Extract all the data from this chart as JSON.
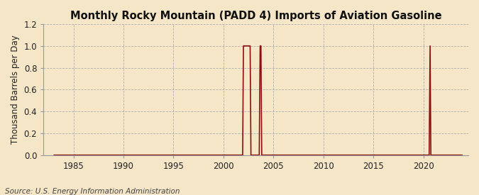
{
  "title": "Monthly Rocky Mountain (PADD 4) Imports of Aviation Gasoline",
  "ylabel": "Thousand Barrels per Day",
  "source": "Source: U.S. Energy Information Administration",
  "background_color": "#f5e6c8",
  "plot_bg_color": "#f5e6c8",
  "line_color": "#8b1010",
  "grid_color": "#b0b0b0",
  "ylim": [
    0.0,
    1.2
  ],
  "yticks": [
    0.0,
    0.2,
    0.4,
    0.6,
    0.8,
    1.0,
    1.2
  ],
  "xlim_start": 1982.0,
  "xlim_end": 2024.5,
  "xticks": [
    1985,
    1990,
    1995,
    2000,
    2005,
    2010,
    2015,
    2020
  ],
  "title_fontsize": 10.5,
  "axis_fontsize": 8.5,
  "tick_fontsize": 8.5,
  "source_fontsize": 7.5,
  "data_points": [
    [
      1983.0,
      0.0
    ],
    [
      1983.08,
      0.0
    ],
    [
      1983.17,
      0.0
    ],
    [
      1983.25,
      0.0
    ],
    [
      1983.33,
      0.0
    ],
    [
      1983.42,
      0.0
    ],
    [
      1983.5,
      0.0
    ],
    [
      1983.58,
      0.0
    ],
    [
      1983.67,
      0.0
    ],
    [
      1983.75,
      0.0
    ],
    [
      1983.83,
      0.0
    ],
    [
      1983.92,
      0.0
    ],
    [
      1984.0,
      0.0
    ],
    [
      1991.0,
      0.0
    ],
    [
      1991.08,
      0.0
    ],
    [
      1991.17,
      0.0
    ],
    [
      1991.25,
      0.0
    ],
    [
      1991.33,
      0.0
    ],
    [
      1991.42,
      0.0
    ],
    [
      1991.5,
      0.0
    ],
    [
      1991.58,
      0.0
    ],
    [
      1991.67,
      0.0
    ],
    [
      1991.75,
      0.0
    ],
    [
      1991.83,
      0.0
    ],
    [
      1991.92,
      0.0
    ],
    [
      1992.0,
      0.0
    ],
    [
      1992.08,
      0.0
    ],
    [
      1992.17,
      0.0
    ],
    [
      1992.25,
      0.0
    ],
    [
      1992.33,
      0.0
    ],
    [
      1992.42,
      0.0
    ],
    [
      1992.5,
      0.0
    ],
    [
      1992.58,
      0.0
    ],
    [
      1992.67,
      0.0
    ],
    [
      1992.75,
      0.0
    ],
    [
      1992.83,
      0.0
    ],
    [
      1992.92,
      0.0
    ],
    [
      1993.0,
      0.0
    ],
    [
      1993.08,
      0.0
    ],
    [
      1993.17,
      0.0
    ],
    [
      1993.25,
      0.0
    ],
    [
      1993.33,
      0.0
    ],
    [
      1993.42,
      0.0
    ],
    [
      1993.5,
      0.0
    ],
    [
      1993.58,
      0.0
    ],
    [
      1993.67,
      0.0
    ],
    [
      1993.75,
      0.0
    ],
    [
      1993.83,
      0.0
    ],
    [
      1993.92,
      0.0
    ],
    [
      1994.0,
      0.0
    ],
    [
      1994.08,
      0.0
    ],
    [
      1994.17,
      0.0
    ],
    [
      1994.25,
      0.0
    ],
    [
      1994.33,
      0.0
    ],
    [
      1994.42,
      0.0
    ],
    [
      1994.5,
      0.0
    ],
    [
      1994.58,
      0.0
    ],
    [
      1994.67,
      0.0
    ],
    [
      1994.75,
      0.0
    ],
    [
      1994.83,
      0.0
    ],
    [
      1994.92,
      0.0
    ],
    [
      1995.0,
      0.0
    ],
    [
      1995.08,
      0.0
    ],
    [
      1995.17,
      0.0
    ],
    [
      1995.25,
      0.0
    ],
    [
      1995.33,
      0.0
    ],
    [
      1995.42,
      0.0
    ],
    [
      1995.5,
      0.0
    ],
    [
      1995.58,
      0.0
    ],
    [
      1995.67,
      0.0
    ],
    [
      1995.75,
      0.0
    ],
    [
      1995.83,
      0.0
    ],
    [
      1995.92,
      0.0
    ],
    [
      1996.0,
      0.0
    ],
    [
      1996.08,
      0.0
    ],
    [
      1996.17,
      0.0
    ],
    [
      1996.25,
      0.0
    ],
    [
      1996.33,
      0.0
    ],
    [
      1996.42,
      0.0
    ],
    [
      1996.5,
      0.0
    ],
    [
      1996.58,
      0.0
    ],
    [
      1996.67,
      0.0
    ],
    [
      1996.75,
      0.0
    ],
    [
      1996.83,
      0.0
    ],
    [
      1996.92,
      0.0
    ],
    [
      1997.0,
      0.0
    ],
    [
      1997.08,
      0.0
    ],
    [
      1997.17,
      0.0
    ],
    [
      1997.25,
      0.0
    ],
    [
      1997.33,
      0.0
    ],
    [
      1997.42,
      0.0
    ],
    [
      1997.5,
      0.0
    ],
    [
      1997.58,
      0.0
    ],
    [
      1997.67,
      0.0
    ],
    [
      1997.75,
      0.0
    ],
    [
      1997.83,
      0.0
    ],
    [
      1997.92,
      0.0
    ],
    [
      1998.0,
      0.0
    ],
    [
      1998.08,
      0.0
    ],
    [
      1998.17,
      0.0
    ],
    [
      1998.25,
      0.0
    ],
    [
      1998.33,
      0.0
    ],
    [
      1998.42,
      0.0
    ],
    [
      1998.5,
      0.0
    ],
    [
      1998.58,
      0.0
    ],
    [
      1998.67,
      0.0
    ],
    [
      1998.75,
      0.0
    ],
    [
      1998.83,
      0.0
    ],
    [
      1998.92,
      0.0
    ],
    [
      1999.0,
      0.0
    ],
    [
      1999.08,
      0.0
    ],
    [
      1999.17,
      0.0
    ],
    [
      1999.25,
      0.0
    ],
    [
      1999.33,
      0.0
    ],
    [
      1999.42,
      0.0
    ],
    [
      1999.5,
      0.0
    ],
    [
      1999.58,
      0.0
    ],
    [
      1999.67,
      0.0
    ],
    [
      1999.75,
      0.0
    ],
    [
      1999.83,
      0.0
    ],
    [
      1999.92,
      0.0
    ],
    [
      2000.0,
      0.0
    ],
    [
      2000.08,
      0.0
    ],
    [
      2000.17,
      0.0
    ],
    [
      2000.25,
      0.0
    ],
    [
      2000.33,
      0.0
    ],
    [
      2000.42,
      0.0
    ],
    [
      2000.5,
      0.0
    ],
    [
      2000.58,
      0.0
    ],
    [
      2000.67,
      0.0
    ],
    [
      2000.75,
      0.0
    ],
    [
      2000.83,
      0.0
    ],
    [
      2000.92,
      0.0
    ],
    [
      2001.0,
      0.0
    ],
    [
      2001.08,
      0.0
    ],
    [
      2001.17,
      0.0
    ],
    [
      2001.25,
      0.0
    ],
    [
      2001.33,
      0.0
    ],
    [
      2001.42,
      0.0
    ],
    [
      2001.5,
      0.0
    ],
    [
      2001.58,
      0.0
    ],
    [
      2001.67,
      0.0
    ],
    [
      2001.75,
      0.0
    ],
    [
      2001.83,
      0.0
    ],
    [
      2001.92,
      0.0
    ],
    [
      2002.0,
      1.0
    ],
    [
      2002.08,
      1.0
    ],
    [
      2002.17,
      1.0
    ],
    [
      2002.25,
      1.0
    ],
    [
      2002.33,
      1.0
    ],
    [
      2002.42,
      1.0
    ],
    [
      2002.5,
      1.0
    ],
    [
      2002.58,
      1.0
    ],
    [
      2002.67,
      1.0
    ],
    [
      2002.75,
      0.0
    ],
    [
      2002.83,
      0.0
    ],
    [
      2002.92,
      0.0
    ],
    [
      2003.0,
      0.0
    ],
    [
      2003.08,
      0.0
    ],
    [
      2003.17,
      0.0
    ],
    [
      2003.25,
      0.0
    ],
    [
      2003.33,
      0.0
    ],
    [
      2003.42,
      0.0
    ],
    [
      2003.5,
      0.0
    ],
    [
      2003.58,
      0.0
    ],
    [
      2003.67,
      1.0
    ],
    [
      2003.75,
      1.0
    ],
    [
      2003.83,
      0.0
    ],
    [
      2003.92,
      0.0
    ],
    [
      2004.0,
      0.0
    ],
    [
      2004.08,
      0.0
    ],
    [
      2004.17,
      0.0
    ],
    [
      2004.25,
      0.0
    ],
    [
      2004.33,
      0.0
    ],
    [
      2004.42,
      0.0
    ],
    [
      2004.5,
      0.0
    ],
    [
      2004.58,
      0.0
    ],
    [
      2004.67,
      0.0
    ],
    [
      2004.75,
      0.0
    ],
    [
      2004.83,
      0.0
    ],
    [
      2004.92,
      0.0
    ],
    [
      2005.0,
      0.0
    ],
    [
      2005.08,
      0.0
    ],
    [
      2005.17,
      0.0
    ],
    [
      2005.25,
      0.0
    ],
    [
      2005.33,
      0.0
    ],
    [
      2005.42,
      0.0
    ],
    [
      2005.5,
      0.0
    ],
    [
      2005.58,
      0.0
    ],
    [
      2005.67,
      0.0
    ],
    [
      2005.75,
      0.0
    ],
    [
      2005.83,
      0.0
    ],
    [
      2005.92,
      0.0
    ],
    [
      2006.0,
      0.0
    ],
    [
      2006.08,
      0.0
    ],
    [
      2006.17,
      0.0
    ],
    [
      2006.25,
      0.0
    ],
    [
      2006.33,
      0.0
    ],
    [
      2006.42,
      0.0
    ],
    [
      2006.5,
      0.0
    ],
    [
      2006.58,
      0.0
    ],
    [
      2006.67,
      0.0
    ],
    [
      2006.75,
      0.0
    ],
    [
      2006.83,
      0.0
    ],
    [
      2006.92,
      0.0
    ],
    [
      2007.0,
      0.0
    ],
    [
      2007.08,
      0.0
    ],
    [
      2007.17,
      0.0
    ],
    [
      2007.25,
      0.0
    ],
    [
      2007.33,
      0.0
    ],
    [
      2007.42,
      0.0
    ],
    [
      2007.5,
      0.0
    ],
    [
      2007.58,
      0.0
    ],
    [
      2007.67,
      0.0
    ],
    [
      2007.75,
      0.0
    ],
    [
      2007.83,
      0.0
    ],
    [
      2007.92,
      0.0
    ],
    [
      2008.0,
      0.0
    ],
    [
      2008.08,
      0.0
    ],
    [
      2008.17,
      0.0
    ],
    [
      2008.25,
      0.0
    ],
    [
      2008.33,
      0.0
    ],
    [
      2008.42,
      0.0
    ],
    [
      2008.5,
      0.0
    ],
    [
      2008.58,
      0.0
    ],
    [
      2008.67,
      0.0
    ],
    [
      2008.75,
      0.0
    ],
    [
      2008.83,
      0.0
    ],
    [
      2008.92,
      0.0
    ],
    [
      2009.0,
      0.0
    ],
    [
      2009.08,
      0.0
    ],
    [
      2009.17,
      0.0
    ],
    [
      2009.25,
      0.0
    ],
    [
      2009.33,
      0.0
    ],
    [
      2009.42,
      0.0
    ],
    [
      2009.5,
      0.0
    ],
    [
      2009.58,
      0.0
    ],
    [
      2009.67,
      0.0
    ],
    [
      2009.75,
      0.0
    ],
    [
      2009.83,
      0.0
    ],
    [
      2009.92,
      0.0
    ],
    [
      2010.0,
      0.0
    ],
    [
      2010.08,
      0.0
    ],
    [
      2010.17,
      0.0
    ],
    [
      2010.25,
      0.0
    ],
    [
      2010.33,
      0.0
    ],
    [
      2010.42,
      0.0
    ],
    [
      2010.5,
      0.0
    ],
    [
      2010.58,
      0.0
    ],
    [
      2010.67,
      0.0
    ],
    [
      2010.75,
      0.0
    ],
    [
      2010.83,
      0.0
    ],
    [
      2010.92,
      0.0
    ],
    [
      2011.0,
      0.0
    ],
    [
      2011.08,
      0.0
    ],
    [
      2011.17,
      0.0
    ],
    [
      2011.25,
      0.0
    ],
    [
      2011.33,
      0.0
    ],
    [
      2011.42,
      0.0
    ],
    [
      2011.5,
      0.0
    ],
    [
      2011.58,
      0.0
    ],
    [
      2011.67,
      0.0
    ],
    [
      2011.75,
      0.0
    ],
    [
      2011.83,
      0.0
    ],
    [
      2011.92,
      0.0
    ],
    [
      2012.0,
      0.0
    ],
    [
      2012.08,
      0.0
    ],
    [
      2012.17,
      0.0
    ],
    [
      2012.25,
      0.0
    ],
    [
      2012.33,
      0.0
    ],
    [
      2012.42,
      0.0
    ],
    [
      2012.5,
      0.0
    ],
    [
      2012.58,
      0.0
    ],
    [
      2012.67,
      0.0
    ],
    [
      2012.75,
      0.0
    ],
    [
      2012.83,
      0.0
    ],
    [
      2012.92,
      0.0
    ],
    [
      2013.0,
      0.0
    ],
    [
      2013.08,
      0.0
    ],
    [
      2013.17,
      0.0
    ],
    [
      2013.25,
      0.0
    ],
    [
      2013.33,
      0.0
    ],
    [
      2013.42,
      0.0
    ],
    [
      2013.5,
      0.0
    ],
    [
      2013.58,
      0.0
    ],
    [
      2013.67,
      0.0
    ],
    [
      2013.75,
      0.0
    ],
    [
      2013.83,
      0.0
    ],
    [
      2013.92,
      0.0
    ],
    [
      2014.0,
      0.0
    ],
    [
      2014.08,
      0.0
    ],
    [
      2014.17,
      0.0
    ],
    [
      2014.25,
      0.0
    ],
    [
      2014.33,
      0.0
    ],
    [
      2014.42,
      0.0
    ],
    [
      2014.5,
      0.0
    ],
    [
      2014.58,
      0.0
    ],
    [
      2014.67,
      0.0
    ],
    [
      2014.75,
      0.0
    ],
    [
      2014.83,
      0.0
    ],
    [
      2014.92,
      0.0
    ],
    [
      2015.0,
      0.0
    ],
    [
      2015.08,
      0.0
    ],
    [
      2015.17,
      0.0
    ],
    [
      2015.25,
      0.0
    ],
    [
      2015.33,
      0.0
    ],
    [
      2015.42,
      0.0
    ],
    [
      2015.5,
      0.0
    ],
    [
      2015.58,
      0.0
    ],
    [
      2015.67,
      0.0
    ],
    [
      2015.75,
      0.0
    ],
    [
      2015.83,
      0.0
    ],
    [
      2015.92,
      0.0
    ],
    [
      2016.0,
      0.0
    ],
    [
      2016.08,
      0.0
    ],
    [
      2016.17,
      0.0
    ],
    [
      2016.25,
      0.0
    ],
    [
      2016.33,
      0.0
    ],
    [
      2016.42,
      0.0
    ],
    [
      2016.5,
      0.0
    ],
    [
      2016.58,
      0.0
    ],
    [
      2016.67,
      0.0
    ],
    [
      2016.75,
      0.0
    ],
    [
      2016.83,
      0.0
    ],
    [
      2016.92,
      0.0
    ],
    [
      2017.0,
      0.0
    ],
    [
      2017.08,
      0.0
    ],
    [
      2017.17,
      0.0
    ],
    [
      2017.25,
      0.0
    ],
    [
      2017.33,
      0.0
    ],
    [
      2017.42,
      0.0
    ],
    [
      2017.5,
      0.0
    ],
    [
      2017.58,
      0.0
    ],
    [
      2017.67,
      0.0
    ],
    [
      2017.75,
      0.0
    ],
    [
      2017.83,
      0.0
    ],
    [
      2017.92,
      0.0
    ],
    [
      2018.0,
      0.0
    ],
    [
      2018.08,
      0.0
    ],
    [
      2018.17,
      0.0
    ],
    [
      2018.25,
      0.0
    ],
    [
      2018.33,
      0.0
    ],
    [
      2018.42,
      0.0
    ],
    [
      2018.5,
      0.0
    ],
    [
      2018.58,
      0.0
    ],
    [
      2018.67,
      0.0
    ],
    [
      2018.75,
      0.0
    ],
    [
      2018.83,
      0.0
    ],
    [
      2018.92,
      0.0
    ],
    [
      2019.0,
      0.0
    ],
    [
      2019.08,
      0.0
    ],
    [
      2019.17,
      0.0
    ],
    [
      2019.25,
      0.0
    ],
    [
      2019.33,
      0.0
    ],
    [
      2019.42,
      0.0
    ],
    [
      2019.5,
      0.0
    ],
    [
      2019.58,
      0.0
    ],
    [
      2019.67,
      0.0
    ],
    [
      2019.75,
      0.0
    ],
    [
      2019.83,
      0.0
    ],
    [
      2019.92,
      0.0
    ],
    [
      2020.0,
      0.0
    ],
    [
      2020.08,
      0.0
    ],
    [
      2020.17,
      0.0
    ],
    [
      2020.25,
      0.0
    ],
    [
      2020.33,
      0.0
    ],
    [
      2020.42,
      0.0
    ],
    [
      2020.5,
      0.0
    ],
    [
      2020.58,
      0.0
    ],
    [
      2020.67,
      1.0
    ],
    [
      2020.75,
      0.0
    ],
    [
      2020.83,
      0.0
    ],
    [
      2020.92,
      0.0
    ],
    [
      2021.0,
      0.0
    ],
    [
      2021.08,
      0.0
    ],
    [
      2021.17,
      0.0
    ],
    [
      2021.25,
      0.0
    ],
    [
      2021.33,
      0.0
    ],
    [
      2021.42,
      0.0
    ],
    [
      2021.5,
      0.0
    ],
    [
      2021.58,
      0.0
    ],
    [
      2021.67,
      0.0
    ],
    [
      2021.75,
      0.0
    ],
    [
      2021.83,
      0.0
    ],
    [
      2021.92,
      0.0
    ],
    [
      2022.0,
      0.0
    ],
    [
      2022.08,
      0.0
    ],
    [
      2022.17,
      0.0
    ],
    [
      2022.25,
      0.0
    ],
    [
      2022.33,
      0.0
    ],
    [
      2022.42,
      0.0
    ],
    [
      2022.5,
      0.0
    ],
    [
      2022.58,
      0.0
    ],
    [
      2022.67,
      0.0
    ],
    [
      2022.75,
      0.0
    ],
    [
      2022.83,
      0.0
    ],
    [
      2022.92,
      0.0
    ],
    [
      2023.0,
      0.0
    ],
    [
      2023.08,
      0.0
    ],
    [
      2023.17,
      0.0
    ],
    [
      2023.25,
      0.0
    ],
    [
      2023.33,
      0.0
    ],
    [
      2023.42,
      0.0
    ],
    [
      2023.5,
      0.0
    ],
    [
      2023.58,
      0.0
    ],
    [
      2023.67,
      0.0
    ],
    [
      2023.75,
      0.0
    ],
    [
      2023.83,
      0.0
    ],
    [
      2023.92,
      0.0
    ]
  ]
}
